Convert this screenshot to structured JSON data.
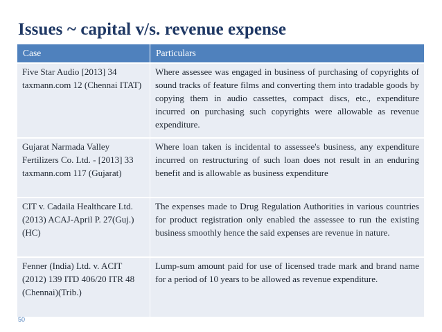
{
  "title": "Issues ~ capital v/s. revenue expense",
  "table": {
    "headers": [
      "Case",
      "Particulars"
    ],
    "rows": [
      {
        "case": "Five Star Audio [2013] 34 taxmann.com 12 (Chennai ITAT)",
        "particulars": "Where assessee was engaged in business of purchasing of copyrights of sound tracks of feature films and converting them into tradable goods by copying them in audio cassettes, compact discs, etc., expenditure incurred on purchasing such copyrights were allowable as revenue expenditure."
      },
      {
        "case": "Gujarat Narmada Valley Fertilizers Co. Ltd. - [2013] 33 taxmann.com 117 (Gujarat)",
        "particulars": "Where loan taken is incidental to assessee's business, any expenditure incurred on restructuring of such loan does not result in an enduring benefit and is allowable as business expenditure"
      },
      {
        "case": "CIT v. Cadaila Healthcare Ltd. (2013) ACAJ-April P. 27(Guj.)(HC)",
        "particulars": "The expenses made to Drug Regulation Authorities in various countries for product registration only enabled the assessee to run the existing business smoothly hence the said expenses are revenue in nature."
      },
      {
        "case": "Fenner (India) Ltd. v. ACIT (2012) 139 ITD 406/20 ITR 48 (Chennai)(Trib.)",
        "particulars": "Lump-sum amount paid for use of licensed trade mark and brand name for a period of 10 years to be allowed as revenue expenditure."
      }
    ]
  },
  "page_number": "50"
}
